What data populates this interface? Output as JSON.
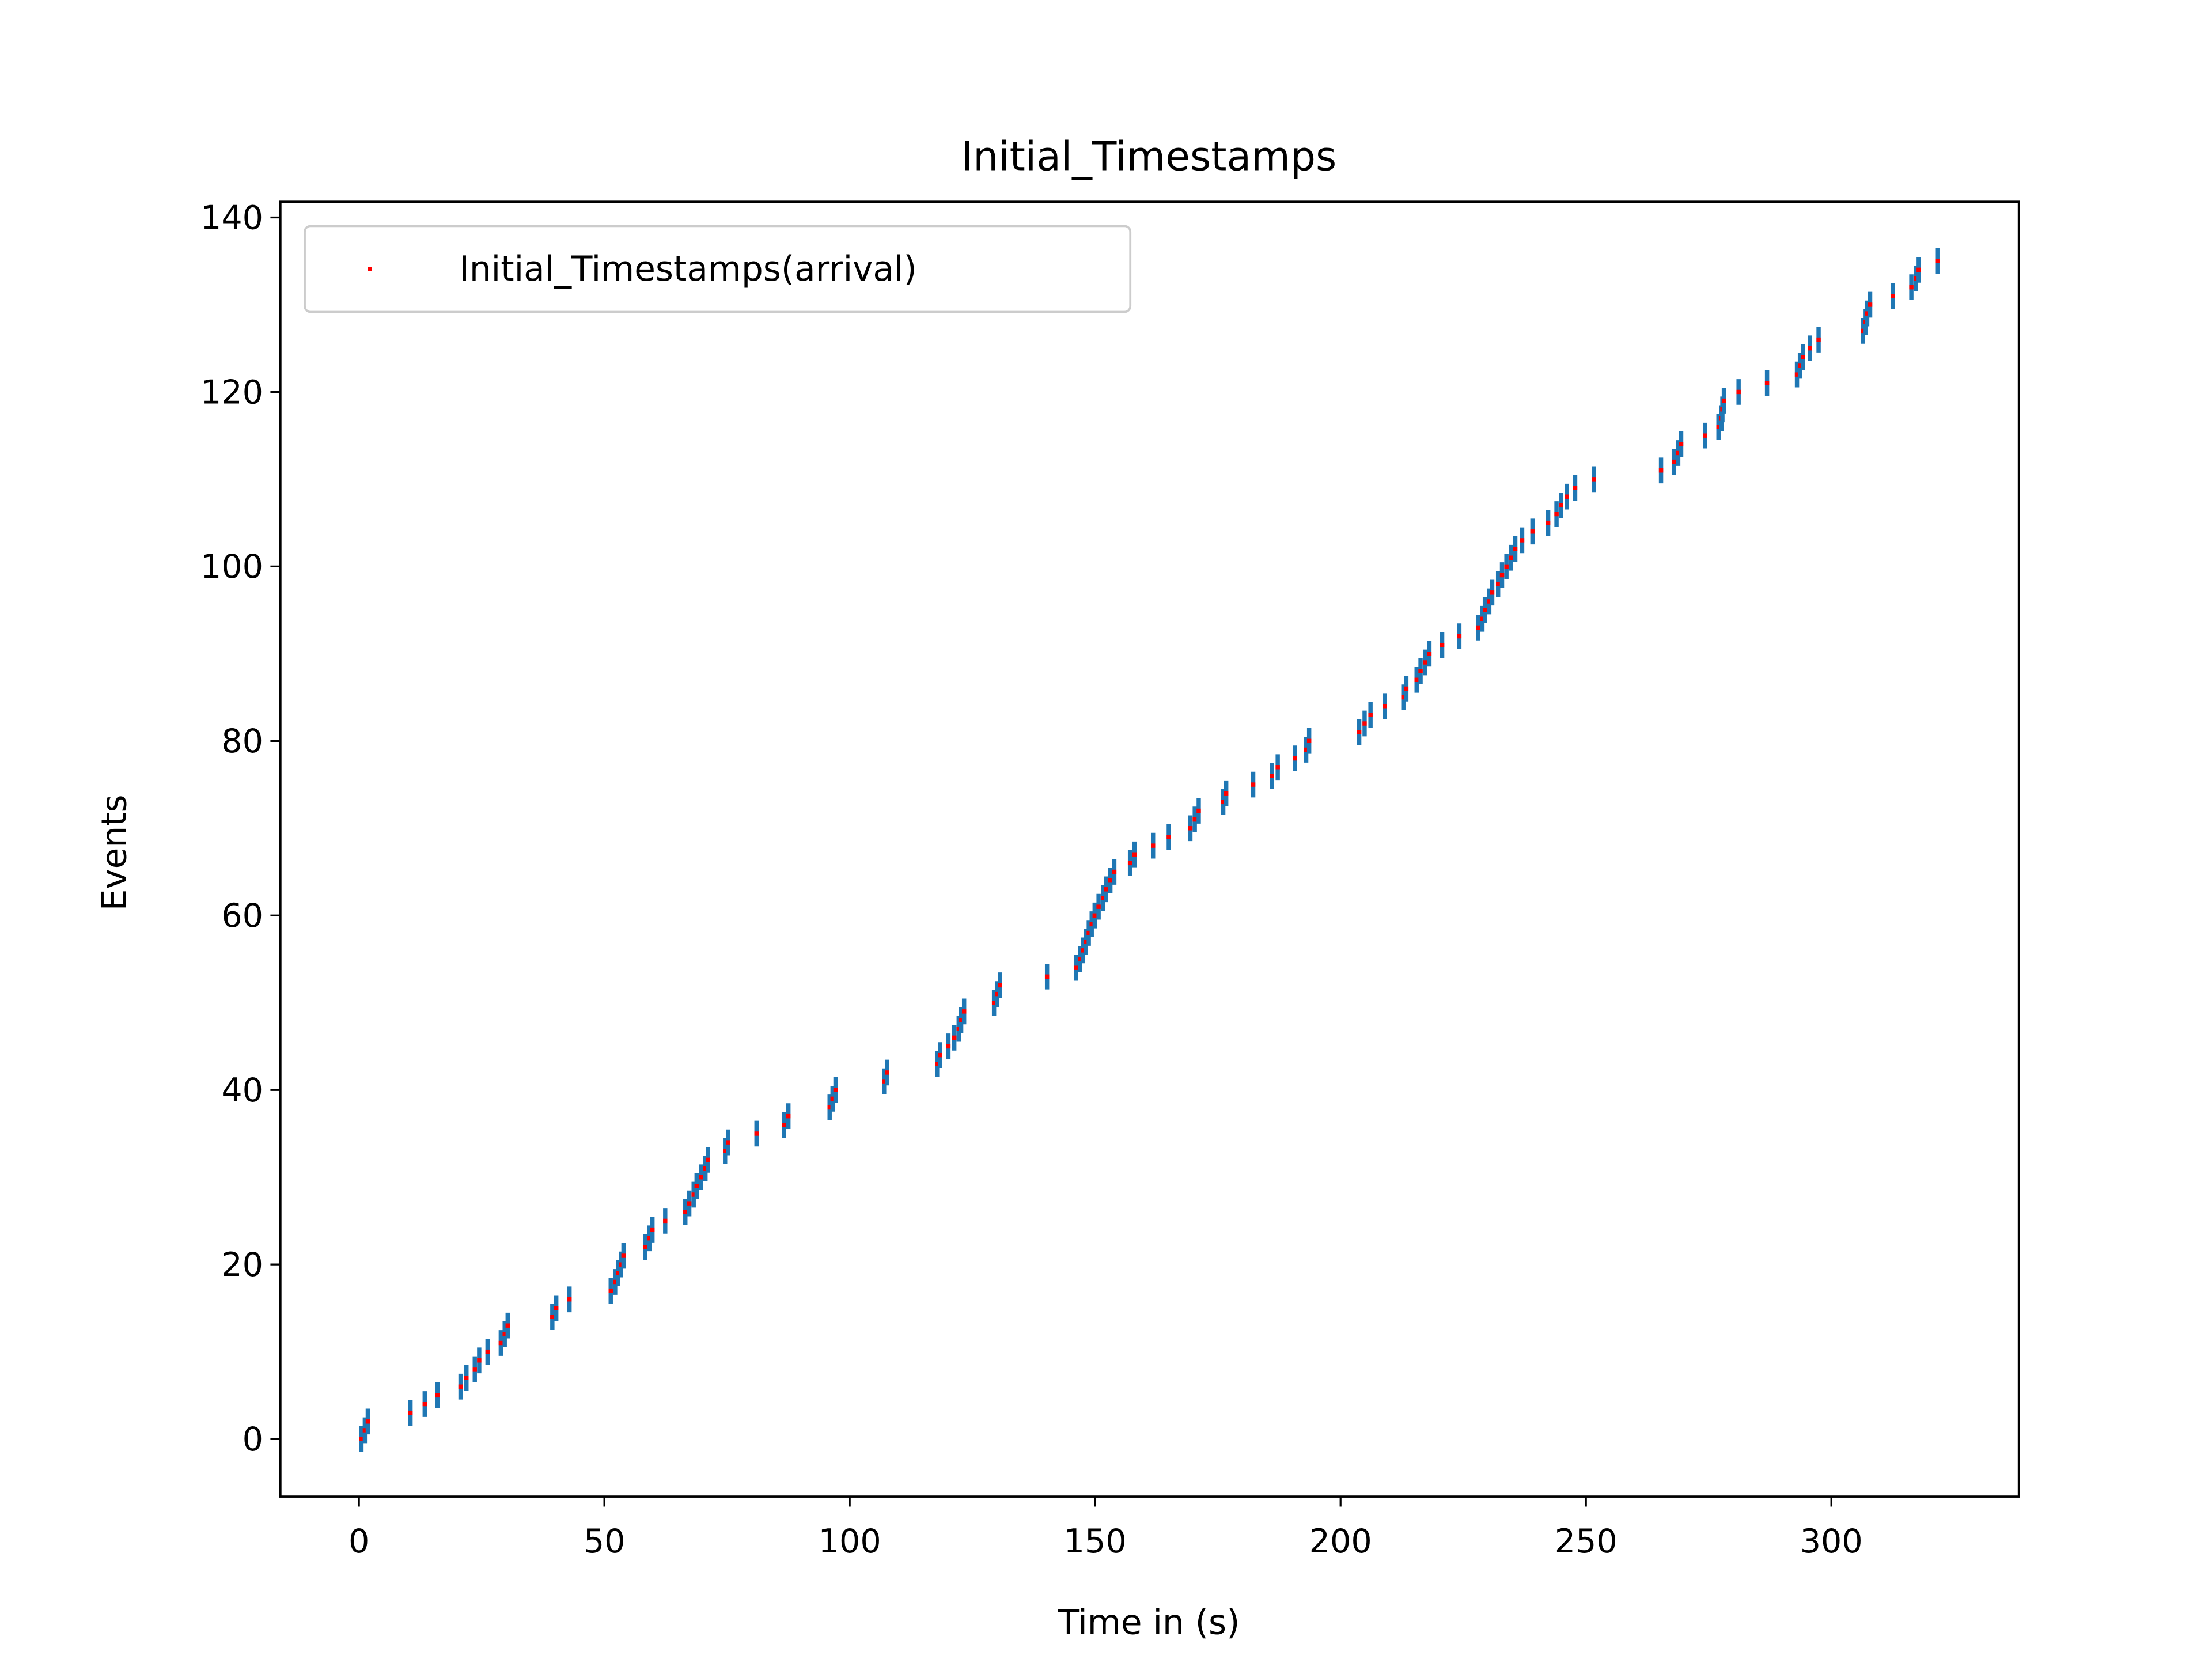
{
  "chart_data": {
    "type": "scatter",
    "title": "Initial_Timestamps",
    "x_label": "Time in (s)",
    "y_label": "Events",
    "x": [
      0.5,
      1.2,
      1.8,
      10.5,
      13.4,
      16,
      20.7,
      21.9,
      23.6,
      24.5,
      26.2,
      28.9,
      29.7,
      30.3,
      39.4,
      40.2,
      42.9,
      51.3,
      52.2,
      52.8,
      53.4,
      53.9,
      58.3,
      59.2,
      59.8,
      62.4,
      66.5,
      67.3,
      68.2,
      68.8,
      69.7,
      70.6,
      71.1,
      74.6,
      75.2,
      81,
      86.6,
      87.5,
      95.9,
      96.5,
      97.1,
      107,
      107.6,
      117.8,
      118.4,
      120.1,
      121.3,
      122.2,
      122.7,
      123.3,
      129.4,
      130,
      130.6,
      140.2,
      146.1,
      146.9,
      147.5,
      148.1,
      148.7,
      149.3,
      149.9,
      150.7,
      151.6,
      152.2,
      153.1,
      153.9,
      157.1,
      158,
      161.8,
      165,
      169.4,
      170.3,
      171.1,
      176.1,
      176.7,
      182.2,
      186,
      187.2,
      190.7,
      193,
      193.6,
      203.8,
      204.9,
      206.1,
      209,
      212.8,
      213.4,
      215.5,
      216.3,
      217.2,
      218.1,
      220.7,
      224.2,
      228,
      228.9,
      229.4,
      230.3,
      230.9,
      232.1,
      232.9,
      233.8,
      234.7,
      235.6,
      237,
      239.1,
      242.3,
      244,
      244.9,
      246.1,
      247.8,
      251.6,
      265.3,
      267.9,
      268.8,
      269.4,
      274.3,
      277,
      277.6,
      277.8,
      278.1,
      281.1,
      286.9,
      293,
      293.6,
      294.2,
      295.6,
      297.4,
      306.4,
      307,
      307.3,
      307.9,
      312.5,
      316.3,
      317.2,
      317.8,
      321.6
    ],
    "series": [
      {
        "name": "Initial_Timestamps(arrival)",
        "color": "#ff0000",
        "marker_color": "#1f77b4",
        "values": [
          0,
          1,
          2,
          3,
          4,
          5,
          6,
          7,
          8,
          9,
          10,
          11,
          12,
          13,
          14,
          15,
          16,
          17,
          18,
          19,
          20,
          21,
          22,
          23,
          24,
          25,
          26,
          27,
          28,
          29,
          30,
          31,
          32,
          33,
          34,
          35,
          36,
          37,
          38,
          39,
          40,
          41,
          42,
          43,
          44,
          45,
          46,
          47,
          48,
          49,
          50,
          51,
          52,
          53,
          54,
          55,
          56,
          57,
          58,
          59,
          60,
          61,
          62,
          63,
          64,
          65,
          66,
          67,
          68,
          69,
          70,
          71,
          72,
          73,
          74,
          75,
          76,
          77,
          78,
          79,
          80,
          81,
          82,
          83,
          84,
          85,
          86,
          87,
          88,
          89,
          90,
          91,
          92,
          93,
          94,
          95,
          96,
          97,
          98,
          99,
          100,
          101,
          102,
          103,
          104,
          105,
          106,
          107,
          108,
          109,
          110,
          111,
          112,
          113,
          114,
          115,
          116,
          117,
          118,
          119,
          120,
          121,
          122,
          123,
          124,
          125,
          126,
          127,
          128,
          129,
          130,
          131,
          132,
          133,
          134,
          135
        ]
      }
    ],
    "xlim": [
      -16,
      338.2
    ],
    "ylim": [
      -6.6,
      141.8
    ],
    "xticks": [
      0,
      50,
      100,
      150,
      200,
      250,
      300
    ],
    "yticks": [
      0,
      20,
      40,
      60,
      80,
      100,
      120,
      140
    ],
    "grid": false,
    "legend": "upper-left"
  }
}
